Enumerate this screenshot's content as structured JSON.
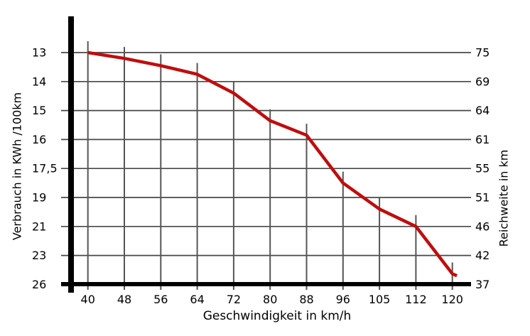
{
  "chart_data": {
    "type": "line",
    "title": "",
    "xlabel": "Geschwindigkeit in km/h",
    "ylabel_left": "Verbrauch in KWh /100km",
    "ylabel_right": "Reichweite in km",
    "x_ticks": [
      40,
      48,
      56,
      64,
      72,
      80,
      88,
      96,
      105,
      112,
      120
    ],
    "x_tick_labels": [
      "40",
      "48",
      "56",
      "64",
      "72",
      "80",
      "88",
      "96",
      "105",
      "112",
      "120"
    ],
    "y_left_tick_values": [
      13,
      14,
      15,
      16,
      17.5,
      19,
      21,
      23,
      26
    ],
    "y_left_tick_labels": [
      "13",
      "14",
      "15",
      "16",
      "17,5",
      "19",
      "21",
      "23",
      "26"
    ],
    "y_right_tick_labels": [
      "75",
      "69",
      "64",
      "61",
      "55",
      "51",
      "46",
      "42",
      "37"
    ],
    "grid": true,
    "legend": "none",
    "series": [
      {
        "x": [
          40,
          48,
          56,
          64,
          72,
          80,
          88,
          96,
          105,
          112,
          120,
          121
        ],
        "y": [
          13.0,
          13.2,
          13.45,
          13.75,
          14.4,
          15.35,
          15.85,
          18.25,
          19.8,
          21.0,
          24.9,
          25.1
        ]
      }
    ],
    "colors": {
      "line": "#c00d0d",
      "grid": "#474747",
      "stem": "#555555",
      "axis": "#000000",
      "text": "#000000"
    }
  }
}
